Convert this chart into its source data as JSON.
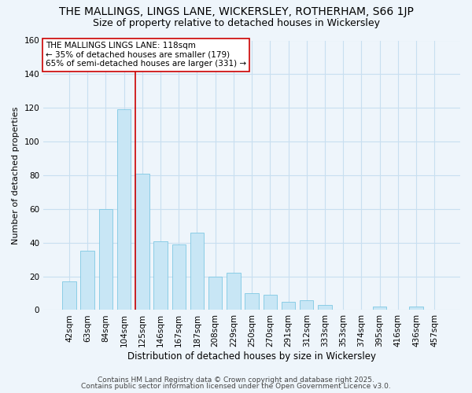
{
  "title": "THE MALLINGS, LINGS LANE, WICKERSLEY, ROTHERHAM, S66 1JP",
  "subtitle": "Size of property relative to detached houses in Wickersley",
  "xlabel": "Distribution of detached houses by size in Wickersley",
  "ylabel": "Number of detached properties",
  "categories": [
    "42sqm",
    "63sqm",
    "84sqm",
    "104sqm",
    "125sqm",
    "146sqm",
    "167sqm",
    "187sqm",
    "208sqm",
    "229sqm",
    "250sqm",
    "270sqm",
    "291sqm",
    "312sqm",
    "333sqm",
    "353sqm",
    "374sqm",
    "395sqm",
    "416sqm",
    "436sqm",
    "457sqm"
  ],
  "values": [
    17,
    35,
    60,
    119,
    81,
    41,
    39,
    46,
    20,
    22,
    10,
    9,
    5,
    6,
    3,
    0,
    0,
    2,
    0,
    2,
    0
  ],
  "bar_color": "#c8e6f5",
  "bar_edge_color": "#7ec8e3",
  "grid_color": "#c8dff0",
  "background_color": "#eef5fb",
  "vline_color": "#cc0000",
  "vline_x": 4,
  "ylim": [
    0,
    160
  ],
  "yticks": [
    0,
    20,
    40,
    60,
    80,
    100,
    120,
    140,
    160
  ],
  "annotation_title": "THE MALLINGS LINGS LANE: 118sqm",
  "annotation_line1": "← 35% of detached houses are smaller (179)",
  "annotation_line2": "65% of semi-detached houses are larger (331) →",
  "annotation_box_color": "#ffffff",
  "annotation_box_edge_color": "#cc0000",
  "footer1": "Contains HM Land Registry data © Crown copyright and database right 2025.",
  "footer2": "Contains public sector information licensed under the Open Government Licence v3.0.",
  "title_fontsize": 10,
  "subtitle_fontsize": 9,
  "xlabel_fontsize": 8.5,
  "ylabel_fontsize": 8,
  "tick_fontsize": 7.5,
  "annotation_fontsize": 7.5,
  "footer_fontsize": 6.5
}
